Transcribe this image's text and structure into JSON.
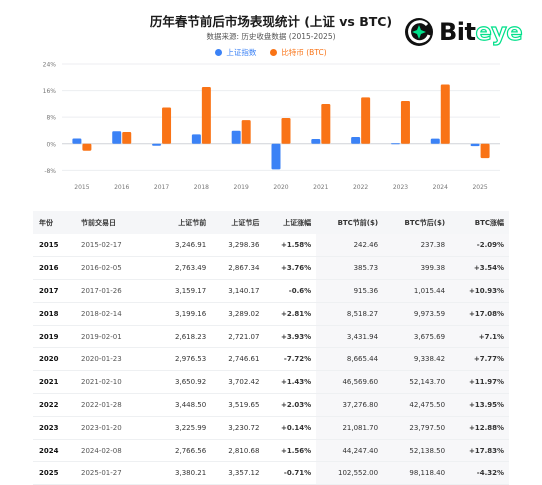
{
  "header": {
    "title": "历年春节前后市场表现统计 (上证 vs BTC)",
    "subtitle": "数据来源: 历史收盘数据 (2015-2025)"
  },
  "logo": {
    "text_main": "Bit",
    "text_accent": "eye",
    "accent_color": "#00e08a"
  },
  "legend": [
    {
      "label": "上证指数",
      "color": "#3b82f6"
    },
    {
      "label": "比特币 (BTC)",
      "color": "#f97316"
    }
  ],
  "chart_data": {
    "type": "bar",
    "categories": [
      "2015",
      "2016",
      "2017",
      "2018",
      "2019",
      "2020",
      "2021",
      "2022",
      "2023",
      "2024",
      "2025"
    ],
    "series": [
      {
        "name": "上证指数",
        "color": "#3b82f6",
        "values": [
          1.58,
          3.76,
          -0.6,
          2.81,
          3.93,
          -7.72,
          1.43,
          2.03,
          0.14,
          1.56,
          -0.71
        ]
      },
      {
        "name": "比特币 (BTC)",
        "color": "#f97316",
        "values": [
          -2.09,
          3.54,
          10.93,
          17.08,
          7.1,
          7.77,
          11.97,
          13.95,
          12.88,
          17.83,
          -4.32
        ]
      }
    ],
    "yticks": [
      "24%",
      "16%",
      "8%",
      "0%",
      "-8%"
    ],
    "ytick_values": [
      24,
      16,
      8,
      0,
      -8
    ],
    "ylim": [
      -10,
      24
    ],
    "grid": true,
    "legend_position": "top"
  },
  "table": {
    "headers": [
      "年份",
      "节前交易日",
      "上证节前",
      "上证节后",
      "上证涨幅",
      "BTC节前($)",
      "BTC节后($)",
      "BTC涨幅"
    ],
    "rows": [
      [
        "2015",
        "2015-02-17",
        "3,246.91",
        "3,298.36",
        "+1.58%",
        "242.46",
        "237.38",
        "-2.09%"
      ],
      [
        "2016",
        "2016-02-05",
        "2,763.49",
        "2,867.34",
        "+3.76%",
        "385.73",
        "399.38",
        "+3.54%"
      ],
      [
        "2017",
        "2017-01-26",
        "3,159.17",
        "3,140.17",
        "-0.6%",
        "915.36",
        "1,015.44",
        "+10.93%"
      ],
      [
        "2018",
        "2018-02-14",
        "3,199.16",
        "3,289.02",
        "+2.81%",
        "8,518.27",
        "9,973.59",
        "+17.08%"
      ],
      [
        "2019",
        "2019-02-01",
        "2,618.23",
        "2,721.07",
        "+3.93%",
        "3,431.94",
        "3,675.69",
        "+7.1%"
      ],
      [
        "2020",
        "2020-01-23",
        "2,976.53",
        "2,746.61",
        "-7.72%",
        "8,665.44",
        "9,338.42",
        "+7.77%"
      ],
      [
        "2021",
        "2021-02-10",
        "3,650.92",
        "3,702.42",
        "+1.43%",
        "46,569.60",
        "52,143.70",
        "+11.97%"
      ],
      [
        "2022",
        "2022-01-28",
        "3,448.50",
        "3,519.65",
        "+2.03%",
        "37,276.80",
        "42,475.50",
        "+13.95%"
      ],
      [
        "2023",
        "2023-01-20",
        "3,225.99",
        "3,230.72",
        "+0.14%",
        "21,081.70",
        "23,797.50",
        "+12.88%"
      ],
      [
        "2024",
        "2024-02-08",
        "2,766.56",
        "2,810.68",
        "+1.56%",
        "44,247.40",
        "52,138.50",
        "+17.83%"
      ],
      [
        "2025",
        "2025-01-27",
        "3,380.21",
        "3,357.12",
        "-0.71%",
        "102,552.00",
        "98,118.40",
        "-4.32%"
      ]
    ]
  }
}
